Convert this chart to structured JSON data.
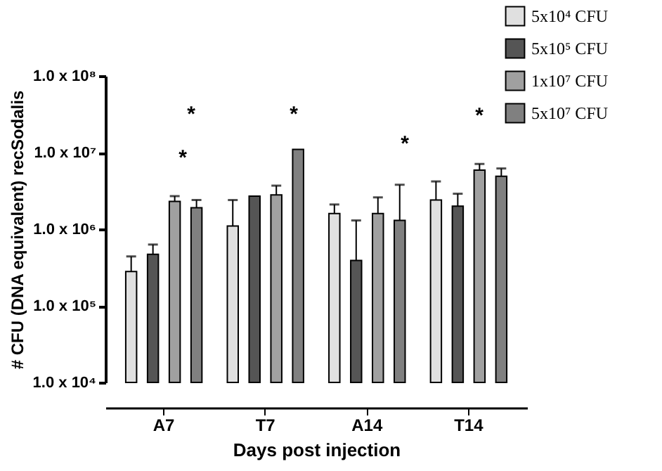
{
  "chart_data": {
    "type": "bar",
    "xlabel": "Days post injection",
    "ylabel": "# CFU (DNA equivalent) recSodalis",
    "categories": [
      "A7",
      "T7",
      "A14",
      "T14"
    ],
    "series": [
      {
        "name": "5x10⁴ CFU",
        "color": "#e0e0e0",
        "values": [
          280000,
          1100000,
          1600000,
          2400000
        ],
        "errors": [
          [
            280000,
            440000
          ],
          [
            1100000,
            2400000
          ],
          [
            1600000,
            2100000
          ],
          [
            2400000,
            4200000
          ]
        ]
      },
      {
        "name": "5x10⁵ CFU",
        "color": "#555555",
        "values": [
          470000,
          2700000,
          390000,
          2000000
        ],
        "errors": [
          [
            470000,
            630000
          ],
          null,
          [
            390000,
            1300000
          ],
          [
            2000000,
            2900000
          ]
        ]
      },
      {
        "name": "1x10⁷ CFU",
        "color": "#a0a0a0",
        "values": [
          2300000,
          2800000,
          1600000,
          5900000
        ],
        "errors": [
          [
            2300000,
            2700000
          ],
          [
            2800000,
            3700000
          ],
          [
            1600000,
            2600000
          ],
          [
            5900000,
            7100000
          ]
        ]
      },
      {
        "name": "5x10⁷ CFU",
        "color": "#808080",
        "values": [
          1900000,
          11000000,
          1300000,
          4900000
        ],
        "errors": [
          [
            1900000,
            2400000
          ],
          null,
          [
            1300000,
            3800000
          ],
          [
            4900000,
            6200000
          ]
        ]
      }
    ],
    "log": "y",
    "ylim": [
      10000,
      100000000
    ],
    "yticks": [
      {
        "value": 10000,
        "label": "1.0 x 10⁴"
      },
      {
        "value": 100000,
        "label": "1.0 x 10⁵"
      },
      {
        "value": 1000000,
        "label": "1.0 x 10⁶"
      },
      {
        "value": 10000000,
        "label": "1.0 x 10⁷"
      },
      {
        "value": 100000000,
        "label": "1.0 x 10⁸"
      }
    ],
    "legend": "top right",
    "grid": false,
    "annotations": [
      "*",
      "*",
      "*",
      "*",
      "*"
    ]
  }
}
